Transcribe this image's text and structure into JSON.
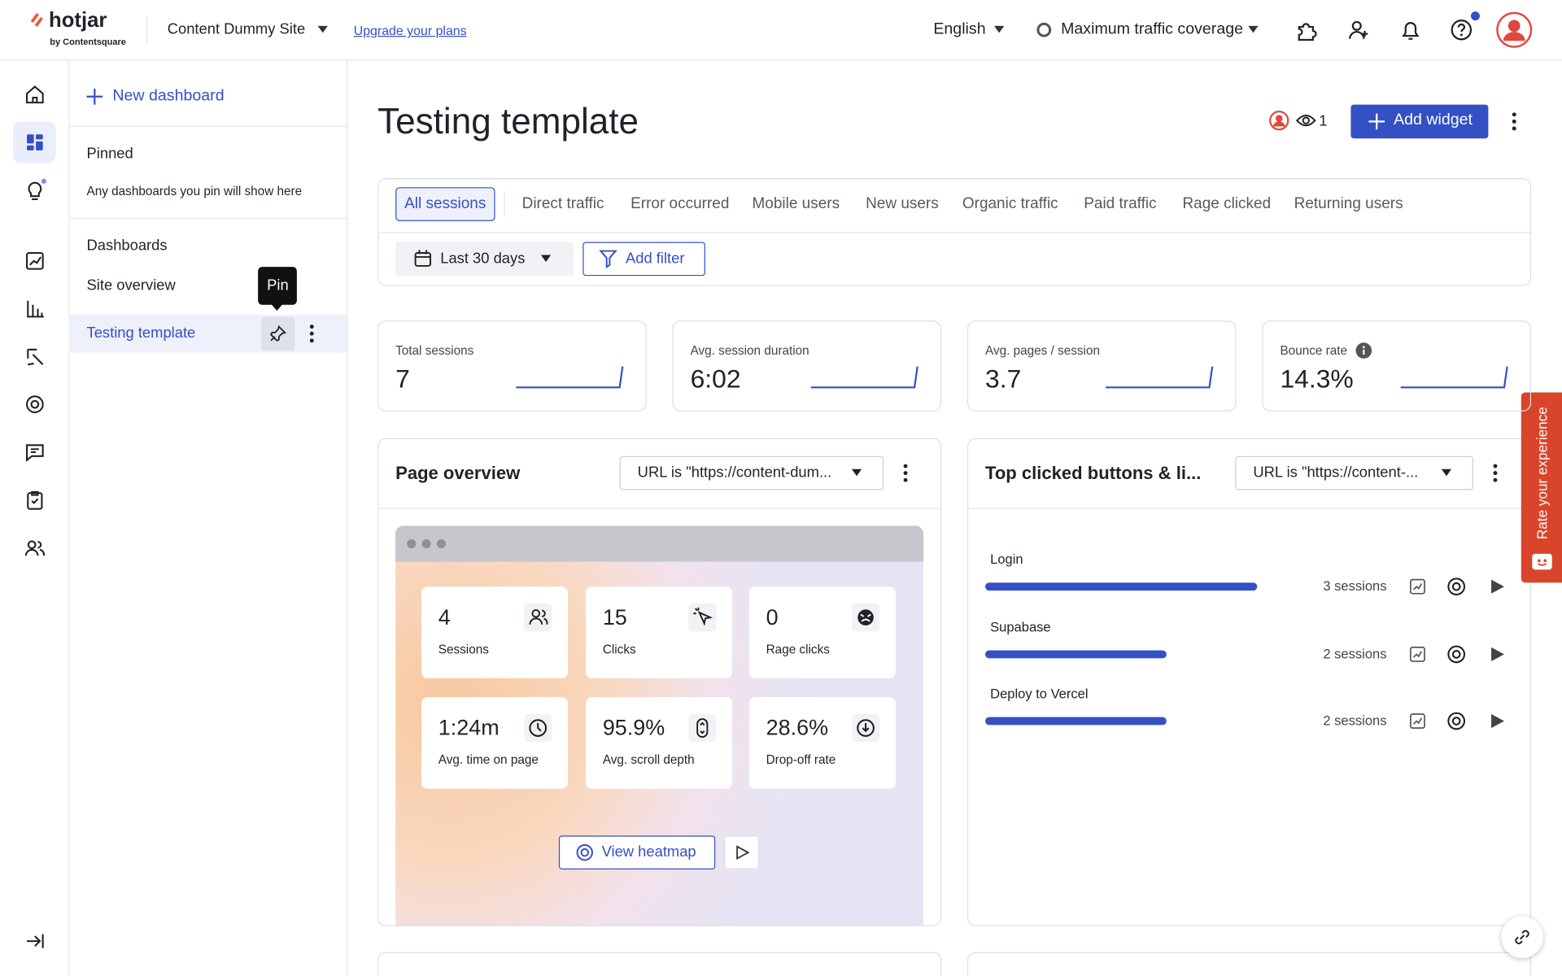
{
  "topbar": {
    "logo": "hotjar",
    "logo_sub": "by Contentsquare",
    "site": "Content Dummy Site",
    "upgrade": "Upgrade your plans",
    "language": "English",
    "coverage": "Maximum traffic coverage"
  },
  "panel": {
    "new_dashboard": "New dashboard",
    "pinned_title": "Pinned",
    "pinned_hint": "Any dashboards you pin will show here",
    "dashboards_title": "Dashboards",
    "dashboards": [
      "Site overview",
      "Testing template"
    ],
    "tooltip": "Pin"
  },
  "main": {
    "title": "Testing template",
    "viewers": "1",
    "add_widget": "Add widget",
    "tabs": [
      "All sessions",
      "Direct traffic",
      "Error occurred",
      "Mobile users",
      "New users",
      "Organic traffic",
      "Paid traffic",
      "Rage clicked",
      "Returning users"
    ],
    "date_range": "Last 30 days",
    "add_filter": "Add filter",
    "metrics": [
      {
        "label": "Total sessions",
        "value": "7"
      },
      {
        "label": "Avg. session duration",
        "value": "6:02"
      },
      {
        "label": "Avg. pages / session",
        "value": "3.7"
      },
      {
        "label": "Bounce rate",
        "value": "14.3%"
      }
    ],
    "page_overview": {
      "title": "Page overview",
      "url_filter": "URL is \"https://content-dum...",
      "stats": [
        {
          "value": "4",
          "label": "Sessions"
        },
        {
          "value": "15",
          "label": "Clicks"
        },
        {
          "value": "0",
          "label": "Rage clicks"
        },
        {
          "value": "1:24m",
          "label": "Avg. time on page"
        },
        {
          "value": "95.9%",
          "label": "Avg. scroll depth"
        },
        {
          "value": "28.6%",
          "label": "Drop-off rate"
        }
      ],
      "view_heatmap": "View heatmap"
    },
    "top_clicked": {
      "title": "Top clicked buttons & li...",
      "url_filter": "URL is \"https://content-...",
      "rows": [
        {
          "label": "Login",
          "sessions": "3 sessions"
        },
        {
          "label": "Supabase",
          "sessions": "2 sessions"
        },
        {
          "label": "Deploy to Vercel",
          "sessions": "2 sessions"
        }
      ]
    }
  },
  "feedback_tab": "Rate your experience"
}
